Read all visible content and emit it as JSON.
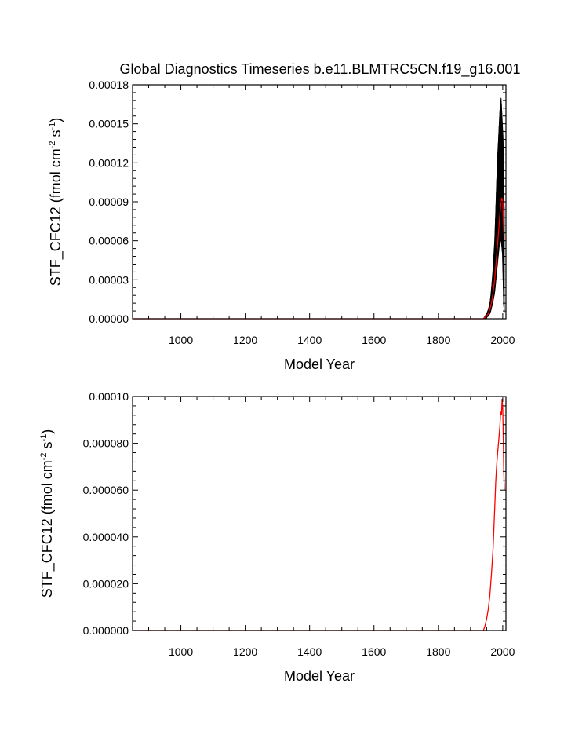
{
  "chart_data": [
    {
      "type": "line",
      "title": "Global Diagnostics Timeseries b.e11.BLMTRC5CN.f19_g16.001",
      "xlabel": "Model Year",
      "ylabel": {
        "base": "STF_CFC12 (fmol cm",
        "exp1": "-2",
        "mid": " s",
        "exp2": "-1",
        "end": ")"
      },
      "xlim": [
        850,
        2010
      ],
      "ylim": [
        0,
        0.00018
      ],
      "xticks": [
        1000,
        1200,
        1400,
        1600,
        1800,
        2000
      ],
      "xtick_labels": [
        "1000",
        "1200",
        "1400",
        "1600",
        "1800",
        "2000"
      ],
      "yticks": [
        0,
        3e-05,
        6e-05,
        9e-05,
        0.00012,
        0.00015,
        0.00018
      ],
      "ytick_labels": [
        "0.00000",
        "0.00003",
        "0.00006",
        "0.00009",
        "0.00012",
        "0.00015",
        "0.00018"
      ],
      "grid": false,
      "series": [
        {
          "color": "#000000",
          "x": [
            850,
            1940,
            1945,
            1950,
            1955,
            1960,
            1963,
            1966,
            1969,
            1972,
            1975,
            1977,
            1979,
            1981,
            1983,
            1985,
            1987,
            1989,
            1991,
            1993,
            1995,
            1997,
            1999,
            2001,
            2003,
            2005
          ],
          "ymin": [
            0,
            0,
            0,
            1e-06,
            2e-06,
            4e-06,
            6e-06,
            9e-06,
            1.2e-05,
            1.6e-05,
            2e-05,
            2.5e-05,
            3e-05,
            3.6e-05,
            4e-05,
            4.5e-05,
            5e-05,
            5.5e-05,
            5.8e-05,
            6e-05,
            6e-05,
            5.5e-05,
            5e-05,
            3e-05,
            1e-05,
            5e-06
          ],
          "ymax": [
            0,
            0,
            2e-06,
            4e-06,
            7e-06,
            1.2e-05,
            1.8e-05,
            2.6e-05,
            3.6e-05,
            4.8e-05,
            6e-05,
            7.5e-05,
            9e-05,
            0.000105,
            0.000118,
            0.00013,
            0.00014,
            0.00015,
            0.00016,
            0.000165,
            0.00017,
            0.00016,
            0.00015,
            0.00014,
            0.00012,
            8e-05
          ]
        },
        {
          "color": "#ff0000",
          "x": [
            850,
            1940,
            1945,
            1950,
            1955,
            1960,
            1965,
            1970,
            1975,
            1980,
            1985,
            1988,
            1991,
            1994,
            1997,
            2000,
            2003,
            2005
          ],
          "y": [
            0,
            0,
            1e-06,
            2e-06,
            4e-06,
            7e-06,
            1.2e-05,
            2e-05,
            3e-05,
            4.5e-05,
            6e-05,
            7e-05,
            8e-05,
            8.8e-05,
            9.3e-05,
            9e-05,
            7e-05,
            6e-05
          ]
        }
      ]
    },
    {
      "type": "line",
      "title": "",
      "xlabel": "Model Year",
      "ylabel": {
        "base": "STF_CFC12 (fmol cm",
        "exp1": "-2",
        "mid": " s",
        "exp2": "-1",
        "end": ")"
      },
      "xlim": [
        850,
        2010
      ],
      "ylim": [
        0,
        0.0001
      ],
      "xticks": [
        1000,
        1200,
        1400,
        1600,
        1800,
        2000
      ],
      "xtick_labels": [
        "1000",
        "1200",
        "1400",
        "1600",
        "1800",
        "2000"
      ],
      "yticks": [
        0,
        2e-05,
        4e-05,
        6e-05,
        8e-05,
        0.0001
      ],
      "ytick_labels": [
        "0.000000",
        "0.000020",
        "0.000040",
        "0.000060",
        "0.000080",
        "0.00010"
      ],
      "grid": false,
      "series": [
        {
          "color": "#ff0000",
          "x": [
            850,
            1940,
            1945,
            1950,
            1955,
            1960,
            1965,
            1970,
            1973,
            1976,
            1978,
            1980,
            1982,
            1985,
            1988,
            1991,
            1993,
            1995,
            1996,
            1998,
            2000,
            2002,
            2003,
            2005
          ],
          "y": [
            0,
            0,
            2e-06,
            5e-06,
            9e-06,
            1.5e-05,
            2.4e-05,
            3.5e-05,
            4.5e-05,
            5.5e-05,
            6.3e-05,
            6.8e-05,
            7.2e-05,
            7.7e-05,
            8.2e-05,
            8.7e-05,
            9.2e-05,
            9.35e-05,
            9.2e-05,
            9.9e-05,
            9.5e-05,
            8e-05,
            7e-05,
            6e-05
          ]
        }
      ]
    }
  ]
}
